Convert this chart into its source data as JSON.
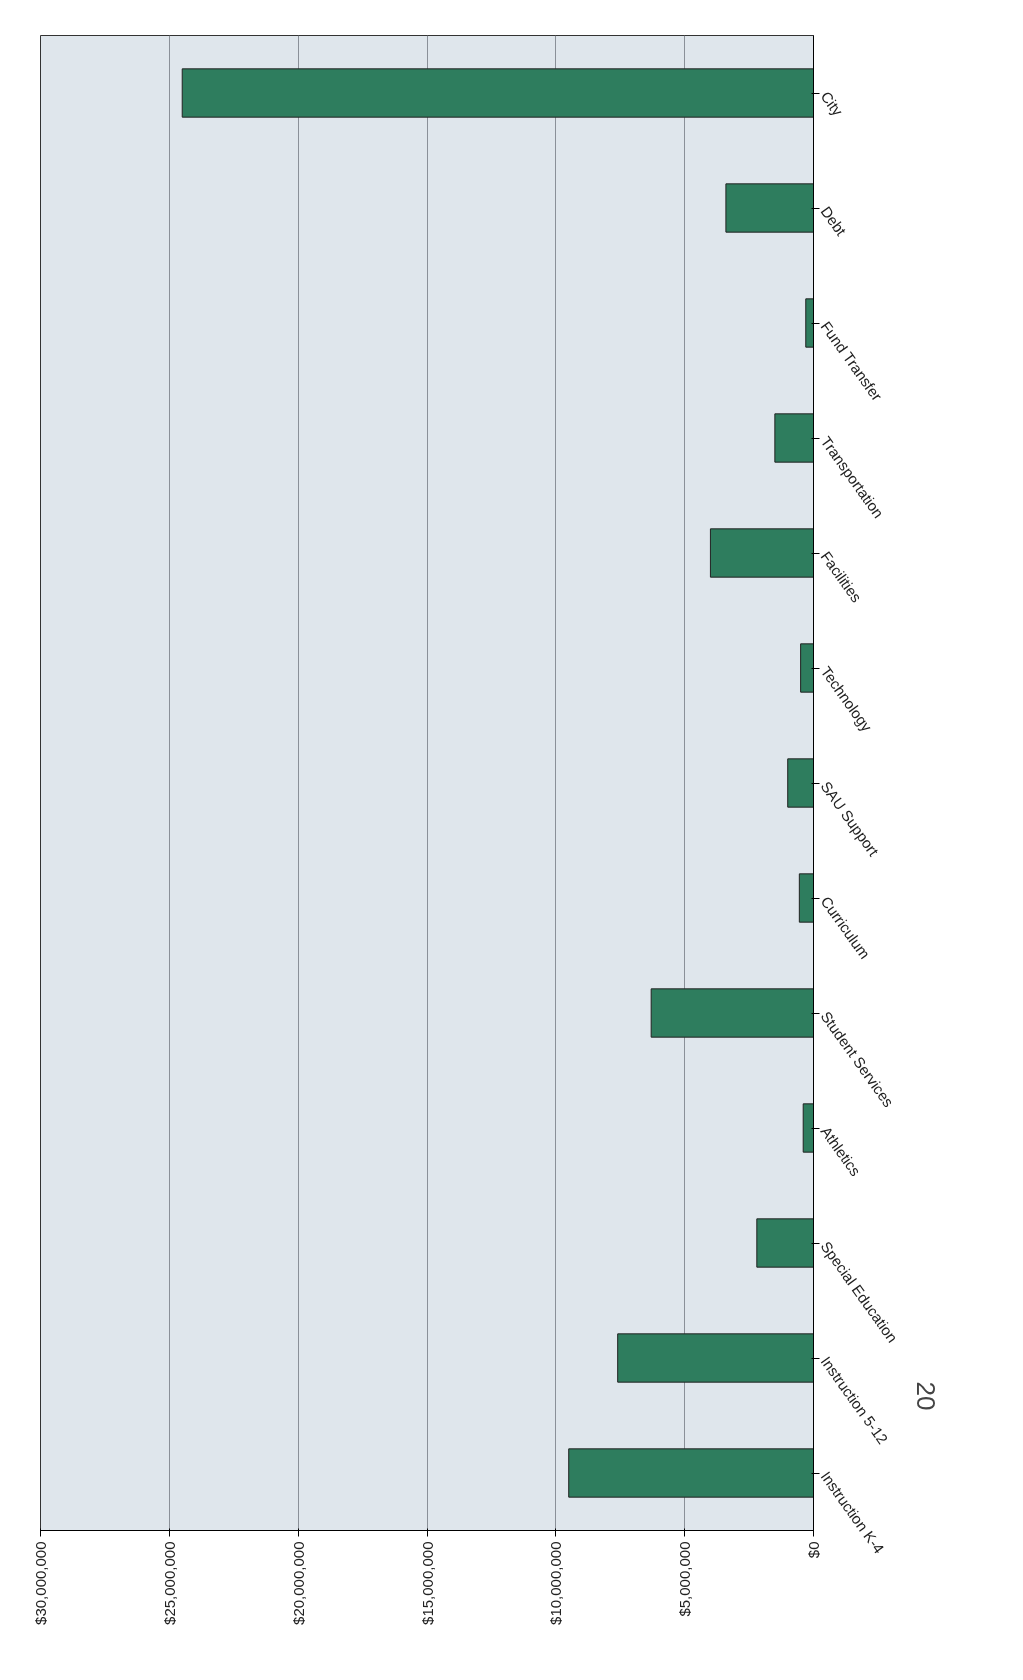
{
  "chart_data": {
    "type": "bar",
    "orientation": "horizontal",
    "categories": [
      "City",
      "Debt",
      "Fund Transfer",
      "Transportation",
      "Facilities",
      "Technology",
      "SAU Support",
      "Curriculum",
      "Student Services",
      "Athletics",
      "Special Education",
      "Instruction 5-12",
      "Instruction K-4"
    ],
    "values": [
      24500000,
      3400000,
      300000,
      1500000,
      4000000,
      500000,
      1000000,
      550000,
      6300000,
      400000,
      2200000,
      7600000,
      9500000
    ],
    "color": "#2e7d5e",
    "xlim": [
      30000000,
      0
    ],
    "xticks": [
      {
        "value": 30000000,
        "label": "$30,000,000"
      },
      {
        "value": 25000000,
        "label": "$25,000,000"
      },
      {
        "value": 20000000,
        "label": "$20,000,000"
      },
      {
        "value": 15000000,
        "label": "$15,000,000"
      },
      {
        "value": 10000000,
        "label": "$10,000,000"
      },
      {
        "value": 5000000,
        "label": "$5,000,000"
      },
      {
        "value": 0,
        "label": "$0"
      }
    ],
    "grid": "x",
    "annotations": [
      "20"
    ]
  }
}
